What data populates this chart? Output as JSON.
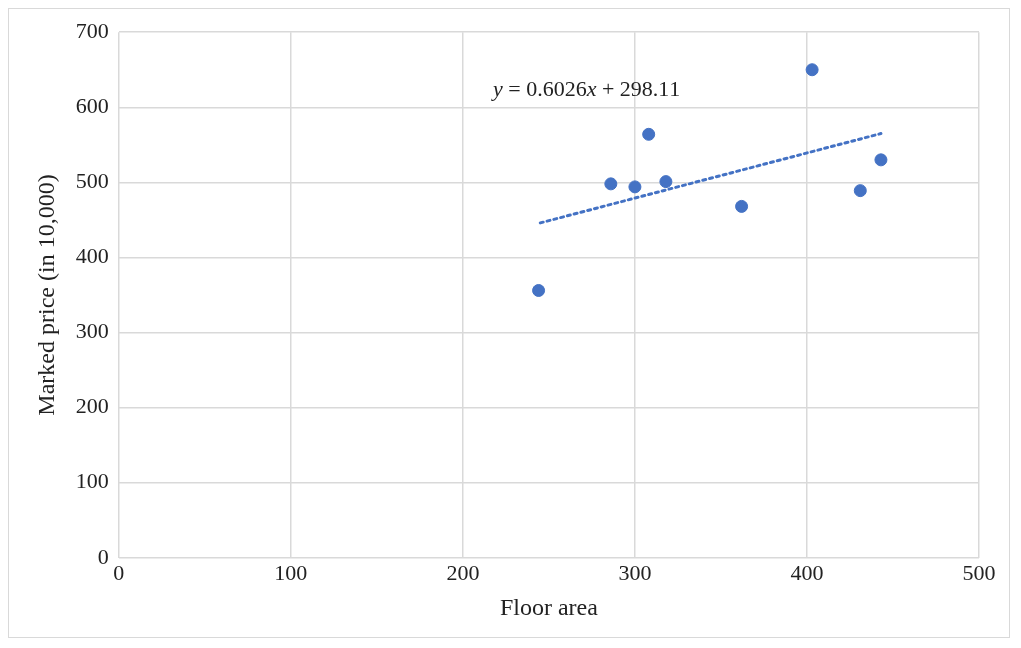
{
  "chart_data": {
    "type": "scatter",
    "xlabel": "Floor area",
    "ylabel": "Marked price (in 10,000)",
    "x": [
      244,
      286,
      300,
      308,
      318,
      362,
      403,
      431,
      443
    ],
    "series": [
      {
        "type": "scatter",
        "color": "#4472c4",
        "values": [
          356,
          498,
          494,
          564,
          501,
          468,
          650,
          489,
          530
        ]
      },
      {
        "type": "line",
        "color": "#4472c4",
        "line_style": "dotted",
        "marker": "none",
        "x": [
          245,
          443
        ],
        "values": [
          446,
          565
        ]
      }
    ],
    "annotations": [
      "y = 0.6026x + 298.11"
    ],
    "xlim": [
      0,
      500
    ],
    "xticks": [
      0,
      100,
      200,
      300,
      400,
      500
    ],
    "ylim": [
      0,
      700
    ],
    "yticks": [
      0,
      100,
      200,
      300,
      400,
      500,
      600,
      700
    ],
    "grid": true,
    "marker": "circle"
  }
}
